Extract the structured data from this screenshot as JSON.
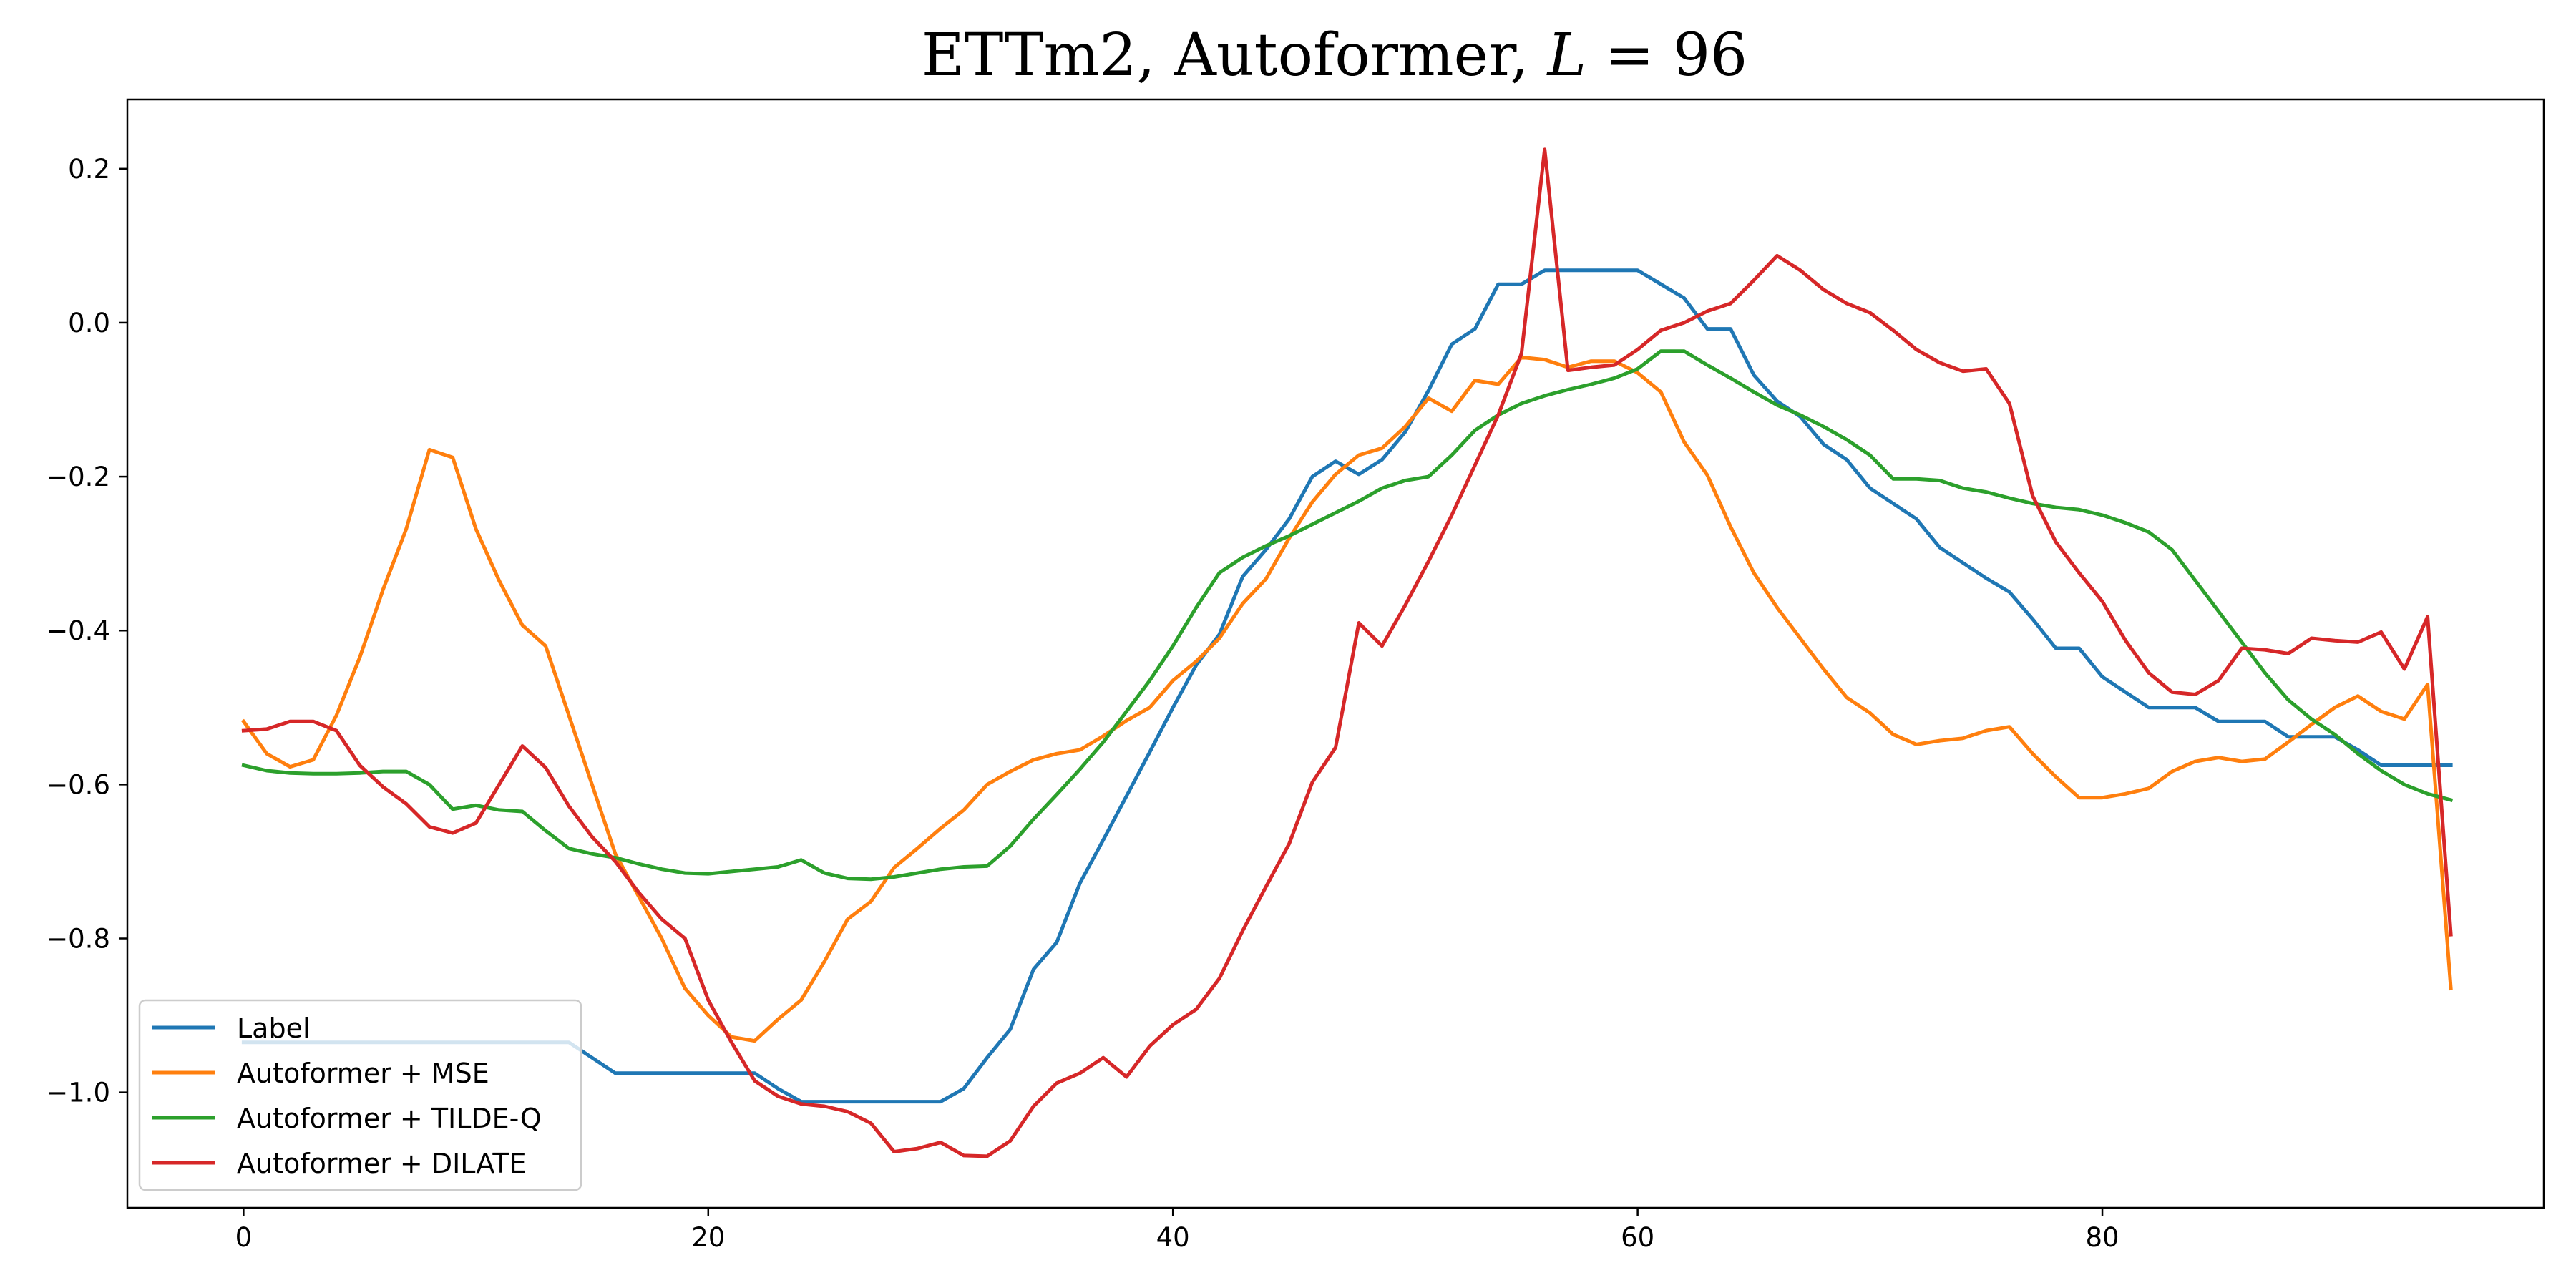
{
  "chart_data": {
    "type": "line",
    "title_prefix": "ETTm2, Autoformer, ",
    "title_var": "L",
    "title_suffix": " = 96",
    "xlabel": "",
    "ylabel": "",
    "xlim": [
      -5,
      99
    ],
    "ylim": [
      -1.15,
      0.29
    ],
    "xticks": [
      0,
      20,
      40,
      60,
      80
    ],
    "yticks": [
      0.2,
      0.0,
      -0.2,
      -0.4,
      -0.6,
      -0.8,
      -1.0
    ],
    "ytick_labels": [
      "0.2",
      "0.0",
      "−0.2",
      "−0.4",
      "−0.6",
      "−0.8",
      "−1.0"
    ],
    "grid": false,
    "legend_position": "lower-left",
    "series": [
      {
        "name": "Label",
        "color": "#1f77b4",
        "values": [
          -0.935,
          -0.935,
          -0.935,
          -0.935,
          -0.935,
          -0.935,
          -0.935,
          -0.935,
          -0.935,
          -0.935,
          -0.935,
          -0.935,
          -0.935,
          -0.935,
          -0.935,
          -0.955,
          -0.975,
          -0.975,
          -0.975,
          -0.975,
          -0.975,
          -0.975,
          -0.975,
          -0.995,
          -1.012,
          -1.012,
          -1.012,
          -1.012,
          -1.012,
          -1.012,
          -1.012,
          -0.995,
          -0.955,
          -0.918,
          -0.84,
          -0.805,
          -0.728,
          -0.672,
          -0.615,
          -0.558,
          -0.5,
          -0.445,
          -0.405,
          -0.33,
          -0.295,
          -0.255,
          -0.2,
          -0.18,
          -0.197,
          -0.178,
          -0.142,
          -0.088,
          -0.028,
          -0.008,
          0.05,
          0.05,
          0.068,
          0.068,
          0.068,
          0.068,
          0.068,
          0.05,
          0.032,
          -0.008,
          -0.008,
          -0.068,
          -0.102,
          -0.122,
          -0.158,
          -0.178,
          -0.215,
          -0.235,
          -0.255,
          -0.292,
          -0.312,
          -0.332,
          -0.35,
          -0.385,
          -0.423,
          -0.423,
          -0.46,
          -0.48,
          -0.5,
          -0.5,
          -0.5,
          -0.518,
          -0.518,
          -0.518,
          -0.538,
          -0.538,
          -0.538,
          -0.555,
          -0.575,
          -0.575,
          -0.575,
          -0.575
        ]
      },
      {
        "name": "Autoformer + MSE",
        "color": "#ff7f0e",
        "values": [
          -0.518,
          -0.56,
          -0.577,
          -0.568,
          -0.51,
          -0.435,
          -0.347,
          -0.268,
          -0.165,
          -0.175,
          -0.268,
          -0.335,
          -0.393,
          -0.42,
          -0.51,
          -0.6,
          -0.69,
          -0.745,
          -0.8,
          -0.865,
          -0.9,
          -0.928,
          -0.933,
          -0.905,
          -0.88,
          -0.83,
          -0.775,
          -0.752,
          -0.708,
          -0.683,
          -0.657,
          -0.633,
          -0.6,
          -0.583,
          -0.568,
          -0.56,
          -0.555,
          -0.537,
          -0.517,
          -0.5,
          -0.465,
          -0.44,
          -0.41,
          -0.365,
          -0.333,
          -0.28,
          -0.233,
          -0.197,
          -0.172,
          -0.163,
          -0.135,
          -0.098,
          -0.115,
          -0.075,
          -0.08,
          -0.045,
          -0.048,
          -0.058,
          -0.05,
          -0.05,
          -0.065,
          -0.09,
          -0.155,
          -0.198,
          -0.265,
          -0.325,
          -0.37,
          -0.41,
          -0.45,
          -0.487,
          -0.507,
          -0.535,
          -0.548,
          -0.543,
          -0.54,
          -0.53,
          -0.525,
          -0.56,
          -0.59,
          -0.617,
          -0.617,
          -0.612,
          -0.605,
          -0.583,
          -0.57,
          -0.565,
          -0.57,
          -0.567,
          -0.545,
          -0.522,
          -0.5,
          -0.485,
          -0.505,
          -0.515,
          -0.47,
          -0.865
        ]
      },
      {
        "name": "Autoformer + TILDE-Q",
        "color": "#2ca02c",
        "values": [
          -0.575,
          -0.582,
          -0.585,
          -0.586,
          -0.586,
          -0.585,
          -0.583,
          -0.583,
          -0.6,
          -0.632,
          -0.627,
          -0.633,
          -0.635,
          -0.66,
          -0.683,
          -0.69,
          -0.695,
          -0.703,
          -0.71,
          -0.715,
          -0.716,
          -0.713,
          -0.71,
          -0.707,
          -0.698,
          -0.715,
          -0.722,
          -0.723,
          -0.72,
          -0.715,
          -0.71,
          -0.707,
          -0.706,
          -0.68,
          -0.645,
          -0.613,
          -0.58,
          -0.545,
          -0.505,
          -0.465,
          -0.42,
          -0.37,
          -0.325,
          -0.305,
          -0.29,
          -0.277,
          -0.262,
          -0.247,
          -0.232,
          -0.215,
          -0.205,
          -0.2,
          -0.172,
          -0.14,
          -0.12,
          -0.105,
          -0.095,
          -0.087,
          -0.08,
          -0.072,
          -0.06,
          -0.037,
          -0.037,
          -0.055,
          -0.072,
          -0.09,
          -0.107,
          -0.12,
          -0.135,
          -0.152,
          -0.172,
          -0.203,
          -0.203,
          -0.205,
          -0.215,
          -0.22,
          -0.228,
          -0.235,
          -0.24,
          -0.243,
          -0.25,
          -0.26,
          -0.272,
          -0.295,
          -0.335,
          -0.375,
          -0.415,
          -0.455,
          -0.49,
          -0.515,
          -0.535,
          -0.56,
          -0.582,
          -0.6,
          -0.612,
          -0.62
        ]
      },
      {
        "name": "Autoformer + DILATE",
        "color": "#d62728",
        "values": [
          -0.53,
          -0.528,
          -0.518,
          -0.518,
          -0.53,
          -0.575,
          -0.603,
          -0.625,
          -0.655,
          -0.663,
          -0.65,
          -0.6,
          -0.55,
          -0.578,
          -0.628,
          -0.668,
          -0.7,
          -0.74,
          -0.775,
          -0.8,
          -0.88,
          -0.935,
          -0.985,
          -1.005,
          -1.015,
          -1.018,
          -1.025,
          -1.04,
          -1.077,
          -1.073,
          -1.065,
          -1.082,
          -1.083,
          -1.063,
          -1.018,
          -0.988,
          -0.975,
          -0.955,
          -0.98,
          -0.94,
          -0.912,
          -0.892,
          -0.852,
          -0.79,
          -0.733,
          -0.677,
          -0.597,
          -0.552,
          -0.39,
          -0.42,
          -0.367,
          -0.31,
          -0.25,
          -0.185,
          -0.12,
          -0.04,
          0.225,
          -0.062,
          -0.058,
          -0.055,
          -0.035,
          -0.01,
          0.0,
          0.015,
          0.025,
          0.055,
          0.087,
          0.068,
          0.043,
          0.025,
          0.013,
          -0.01,
          -0.035,
          -0.052,
          -0.063,
          -0.06,
          -0.105,
          -0.225,
          -0.285,
          -0.325,
          -0.362,
          -0.413,
          -0.455,
          -0.48,
          -0.483,
          -0.465,
          -0.423,
          -0.425,
          -0.43,
          -0.41,
          -0.413,
          -0.415,
          -0.402,
          -0.45,
          -0.382,
          -0.795
        ]
      }
    ]
  }
}
